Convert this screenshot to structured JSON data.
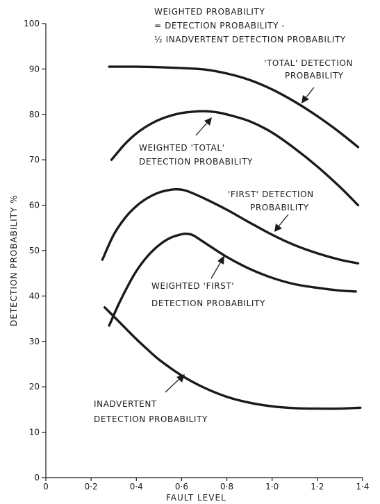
{
  "chart_data": {
    "type": "line",
    "title": "",
    "xlabel": "FAULT LEVEL",
    "ylabel": "DETECTION PROBABILITY %",
    "xlim": [
      0,
      1.4
    ],
    "ylim": [
      0,
      100
    ],
    "grid": false,
    "x_ticks": [
      "0",
      "0·2",
      "0·4",
      "0·6",
      "0·8",
      "1·0",
      "1·2",
      "1·4"
    ],
    "y_ticks": [
      "0",
      "10",
      "20",
      "30",
      "40",
      "50",
      "60",
      "70",
      "80",
      "90",
      "100"
    ],
    "formula": {
      "line1": "WEIGHTED PROBABILITY",
      "line2": "= DETECTION PROBABILITY -",
      "line3": "½ INADVERTENT DETECTION PROBABILITY"
    },
    "series": [
      {
        "label_lines": [
          "'TOTAL' DETECTION",
          "PROBABILITY"
        ],
        "x": [
          0.28,
          0.4,
          0.5,
          0.6,
          0.7,
          0.8,
          0.9,
          1.0,
          1.1,
          1.2,
          1.3,
          1.38
        ],
        "y": [
          90.5,
          90.5,
          90.4,
          90.2,
          89.9,
          89.0,
          87.6,
          85.5,
          82.8,
          79.6,
          76.0,
          72.8
        ]
      },
      {
        "label_lines": [
          "WEIGHTED 'TOTAL'",
          "DETECTION PROBABILITY"
        ],
        "x": [
          0.29,
          0.35,
          0.4,
          0.45,
          0.5,
          0.55,
          0.6,
          0.65,
          0.7,
          0.75,
          0.8,
          0.9,
          1.0,
          1.1,
          1.2,
          1.3,
          1.38
        ],
        "y": [
          70.0,
          73.5,
          75.8,
          77.5,
          78.8,
          79.7,
          80.3,
          80.6,
          80.7,
          80.5,
          80.0,
          78.5,
          76.0,
          72.5,
          68.5,
          64.0,
          60.0
        ]
      },
      {
        "label_lines": [
          "'FIRST' DETECTION",
          "PROBABILITY"
        ],
        "x": [
          0.25,
          0.3,
          0.35,
          0.4,
          0.45,
          0.5,
          0.55,
          0.58,
          0.62,
          0.7,
          0.8,
          0.9,
          1.0,
          1.1,
          1.2,
          1.3,
          1.38
        ],
        "y": [
          48.0,
          53.5,
          57.2,
          59.8,
          61.6,
          62.8,
          63.4,
          63.5,
          63.2,
          61.5,
          59.0,
          56.2,
          53.5,
          51.2,
          49.4,
          48.0,
          47.2
        ]
      },
      {
        "label_lines": [
          "WEIGHTED 'FIRST'",
          "DETECTION PROBABILITY"
        ],
        "x": [
          0.28,
          0.32,
          0.36,
          0.4,
          0.45,
          0.5,
          0.55,
          0.6,
          0.62,
          0.65,
          0.7,
          0.8,
          0.9,
          1.0,
          1.1,
          1.2,
          1.3,
          1.37
        ],
        "y": [
          33.5,
          38.0,
          42.0,
          45.5,
          48.8,
          51.2,
          52.8,
          53.6,
          53.7,
          53.4,
          51.8,
          48.6,
          46.0,
          44.0,
          42.6,
          41.8,
          41.2,
          41.0
        ]
      },
      {
        "label_lines": [
          "INADVERTENT",
          "DETECTION PROBABILITY"
        ],
        "x": [
          0.26,
          0.3,
          0.35,
          0.4,
          0.45,
          0.5,
          0.6,
          0.7,
          0.8,
          0.9,
          1.0,
          1.1,
          1.2,
          1.3,
          1.39
        ],
        "y": [
          37.5,
          35.5,
          33.0,
          30.5,
          28.2,
          26.0,
          22.5,
          19.8,
          17.8,
          16.5,
          15.7,
          15.3,
          15.2,
          15.2,
          15.4
        ]
      }
    ]
  }
}
